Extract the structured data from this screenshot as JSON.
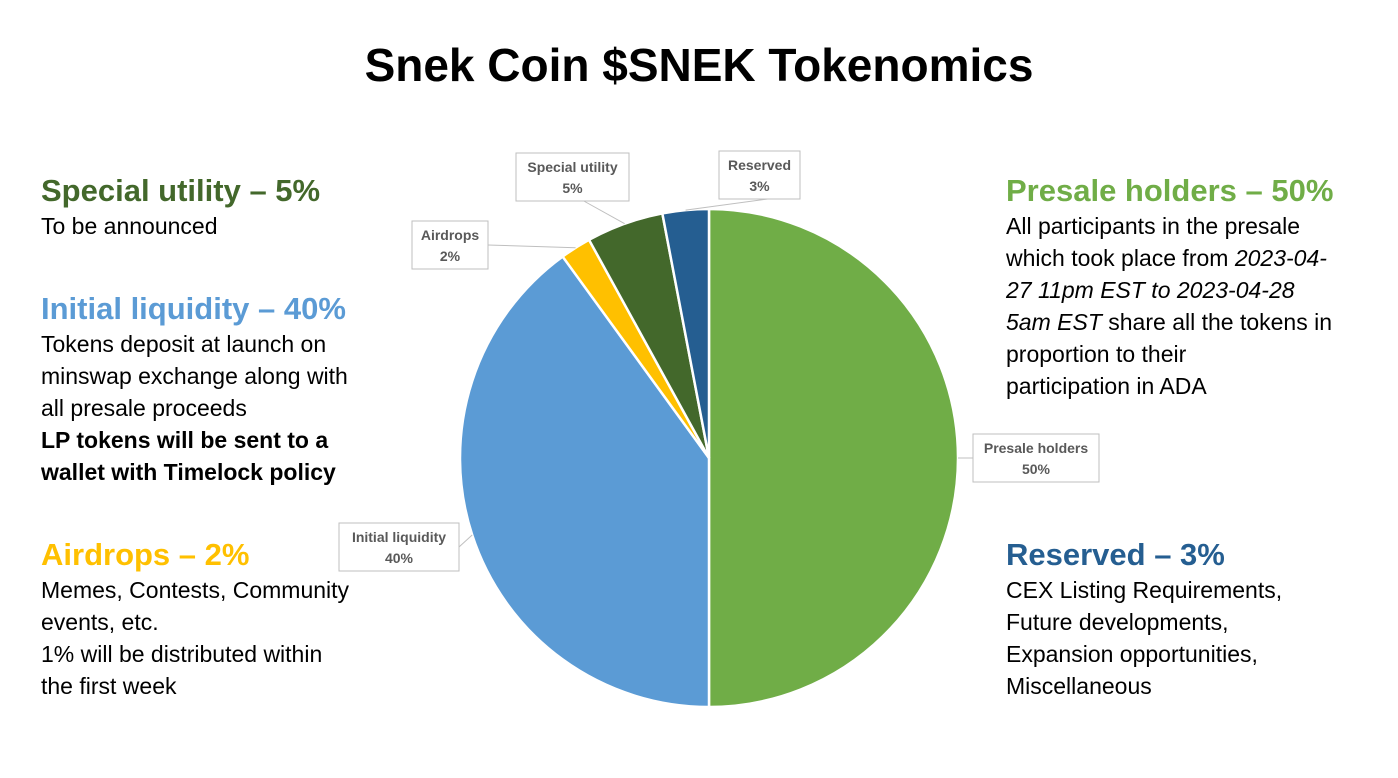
{
  "title": "Snek Coin $SNEK Tokenomics",
  "colors": {
    "presale": "#70ad47",
    "liquidity": "#5b9bd5",
    "airdrops": "#ffc000",
    "special": "#43682b",
    "reserved": "#255e91",
    "callout_text": "#595959"
  },
  "sections": {
    "special": {
      "heading": "Special utility – 5%",
      "lines": [
        "To be announced"
      ]
    },
    "liquidity": {
      "heading": "Initial liquidity – 40%",
      "lines": [
        "Tokens deposit at launch on",
        "minswap exchange along with",
        "all presale proceeds"
      ],
      "bold_lines": [
        "LP tokens will be sent to a",
        "wallet with Timelock policy"
      ]
    },
    "airdrops": {
      "heading": "Airdrops – 2%",
      "lines": [
        "Memes, Contests, Community",
        "events, etc.",
        "1% will be distributed within",
        "the first week"
      ]
    },
    "presale": {
      "heading": "Presale holders – 50%",
      "line1": "All participants in the presale",
      "line2_pre": "which took place from ",
      "line2_it": "2023-04-",
      "line3_it": "27 11pm EST to 2023-04-28",
      "line4_it": "5am EST",
      "line4_post": " share all the tokens in",
      "line5": "proportion to their",
      "line6": "participation in ADA"
    },
    "reserved": {
      "heading": "Reserved – 3%",
      "lines": [
        "CEX Listing Requirements,",
        "Future developments,",
        "Expansion opportunities,",
        "Miscellaneous"
      ]
    }
  },
  "chart_data": {
    "type": "pie",
    "start_angle_deg": 0,
    "direction": "clockwise",
    "slices": [
      {
        "label": "Presale holders",
        "value": 50,
        "value_label": "50%",
        "color": "#70ad47"
      },
      {
        "label": "Initial liquidity",
        "value": 40,
        "value_label": "40%",
        "color": "#5b9bd5"
      },
      {
        "label": "Airdrops",
        "value": 2,
        "value_label": "2%",
        "color": "#ffc000"
      },
      {
        "label": "Special utility",
        "value": 5,
        "value_label": "5%",
        "color": "#43682b"
      },
      {
        "label": "Reserved",
        "value": 3,
        "value_label": "3%",
        "color": "#255e91"
      }
    ]
  }
}
